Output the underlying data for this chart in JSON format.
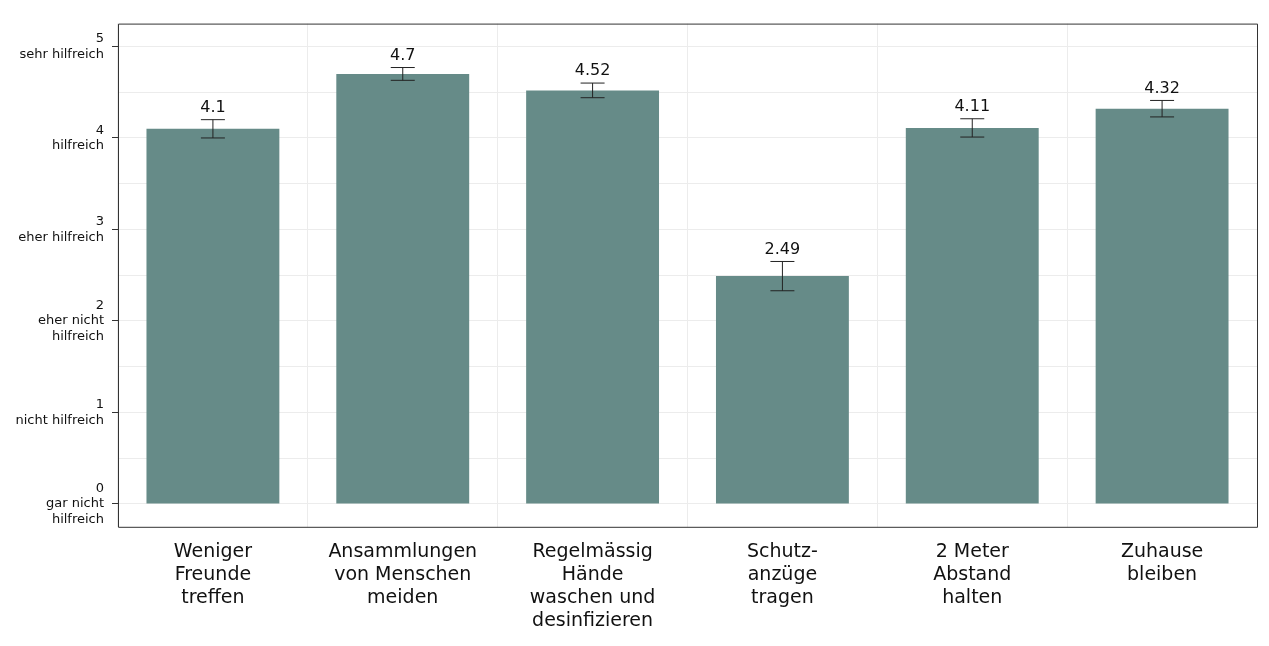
{
  "chart_data": {
    "type": "bar",
    "categories": [
      "Weniger\nFreunde\ntreffen",
      "Ansammlungen\nvon Menschen\nmeiden",
      "Regelmässig\nHände\nwaschen und\ndesinfizieren",
      "Schutz-\nanzüge\ntragen",
      "2 Meter\nAbstand\nhalten",
      "Zuhause\nbleiben"
    ],
    "values": [
      4.1,
      4.7,
      4.52,
      2.49,
      4.11,
      4.32
    ],
    "errors": [
      0.1,
      0.07,
      0.08,
      0.16,
      0.1,
      0.09
    ],
    "color": "#668b88",
    "data_labels": true,
    "ylim": [
      -0.25,
      5.25
    ],
    "yticks": [
      {
        "value": 0,
        "label": "0\ngar nicht\nhilfreich"
      },
      {
        "value": 0.5,
        "label": null
      },
      {
        "value": 1,
        "label": "1\nnicht hilfreich"
      },
      {
        "value": 1.5,
        "label": null
      },
      {
        "value": 2,
        "label": "2\neher nicht\nhilfreich"
      },
      {
        "value": 2.5,
        "label": null
      },
      {
        "value": 3,
        "label": "3\neher hilfreich"
      },
      {
        "value": 3.5,
        "label": null
      },
      {
        "value": 4,
        "label": "4\nhilfreich"
      },
      {
        "value": 4.5,
        "label": null
      },
      {
        "value": 5,
        "label": "5\nsehr hilfreich"
      }
    ],
    "grid": true,
    "legend": false
  }
}
